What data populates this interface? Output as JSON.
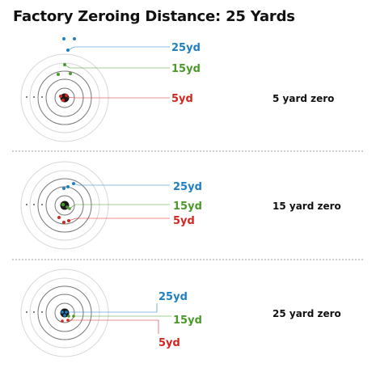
{
  "title": "Factory Zeroing Distance: 25 Yards",
  "colors": {
    "ring": "#d6d6d6",
    "ring_inner": "#777777",
    "divider": "#9a9a9a",
    "text": "#111111",
    "bull": "#1a1a1a",
    "yd25": "#1f7fc4",
    "yd15": "#4a9a2a",
    "yd5": "#d4261f"
  },
  "distance_labels": {
    "yd25": "25yd",
    "yd15": "15yd",
    "yd5": "5yd"
  },
  "panels": [
    {
      "zero_label": "5 yard zero"
    },
    {
      "zero_label": "15 yard zero"
    },
    {
      "zero_label": "25 yard zero"
    }
  ]
}
